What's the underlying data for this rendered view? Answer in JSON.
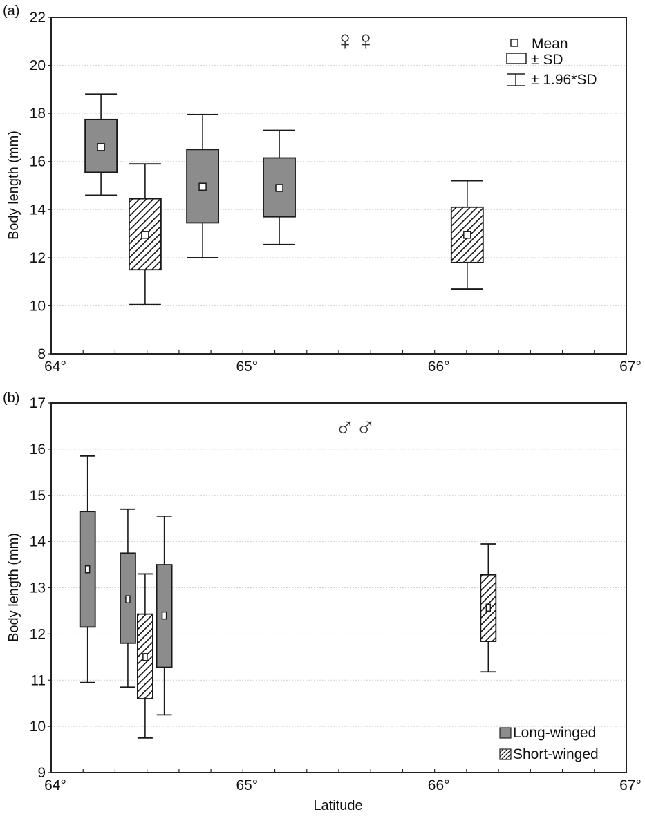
{
  "chart_data": [
    {
      "type": "box",
      "panel_label": "(a)",
      "annotation": "♀♀",
      "title": "",
      "xlabel": "",
      "ylabel": "Body length (mm)",
      "xlim": [
        64,
        67
      ],
      "ylim": [
        8,
        22
      ],
      "x_ticks": [
        64,
        65,
        66,
        67
      ],
      "x_tick_labels": [
        "64°",
        "65°",
        "66°",
        "67°"
      ],
      "y_ticks": [
        8,
        10,
        12,
        14,
        16,
        18,
        20,
        22
      ],
      "y_tick_labels": [
        "8",
        "10",
        "12",
        "14",
        "16",
        "18",
        "20",
        "22"
      ],
      "grid": "horizontal dotted",
      "legend": {
        "position": "top-right",
        "entries": [
          "Mean",
          "± SD",
          "± 1.96*SD"
        ]
      },
      "boxes": [
        {
          "latitude": 64.26,
          "group": "Long-winged",
          "mean": 16.6,
          "sd_low": 15.55,
          "sd_high": 17.75,
          "whisker_low": 14.6,
          "whisker_high": 18.8
        },
        {
          "latitude": 64.49,
          "group": "Short-winged",
          "mean": 12.95,
          "sd_low": 11.5,
          "sd_high": 14.45,
          "whisker_low": 10.05,
          "whisker_high": 15.9
        },
        {
          "latitude": 64.79,
          "group": "Long-winged",
          "mean": 14.95,
          "sd_low": 13.45,
          "sd_high": 16.5,
          "whisker_low": 12.0,
          "whisker_high": 17.95
        },
        {
          "latitude": 65.19,
          "group": "Long-winged",
          "mean": 14.9,
          "sd_low": 13.7,
          "sd_high": 16.15,
          "whisker_low": 12.55,
          "whisker_high": 17.3
        },
        {
          "latitude": 66.17,
          "group": "Short-winged",
          "mean": 12.95,
          "sd_low": 11.8,
          "sd_high": 14.1,
          "whisker_low": 10.7,
          "whisker_high": 15.2
        }
      ]
    },
    {
      "type": "box",
      "panel_label": "(b)",
      "annotation": "♂♂",
      "title": "",
      "xlabel": "Latitude",
      "ylabel": "Body length (mm)",
      "xlim": [
        64,
        67
      ],
      "ylim": [
        9,
        17
      ],
      "x_ticks": [
        64,
        65,
        66,
        67
      ],
      "x_tick_labels": [
        "64°",
        "65°",
        "66°",
        "67°"
      ],
      "y_ticks": [
        9,
        10,
        11,
        12,
        13,
        14,
        15,
        16,
        17
      ],
      "y_tick_labels": [
        "9",
        "10",
        "11",
        "12",
        "13",
        "14",
        "15",
        "16",
        "17"
      ],
      "grid": "horizontal dotted",
      "legend": {
        "position": "bottom-right",
        "entries": [
          "Long-winged",
          "Short-winged"
        ]
      },
      "boxes": [
        {
          "latitude": 64.19,
          "group": "Long-winged",
          "mean": 13.4,
          "sd_low": 12.15,
          "sd_high": 14.65,
          "whisker_low": 10.95,
          "whisker_high": 15.85
        },
        {
          "latitude": 64.4,
          "group": "Long-winged",
          "mean": 12.75,
          "sd_low": 11.8,
          "sd_high": 13.75,
          "whisker_low": 10.85,
          "whisker_high": 14.7
        },
        {
          "latitude": 64.49,
          "group": "Short-winged",
          "mean": 11.5,
          "sd_low": 10.6,
          "sd_high": 12.43,
          "whisker_low": 9.75,
          "whisker_high": 13.3
        },
        {
          "latitude": 64.59,
          "group": "Long-winged",
          "mean": 12.4,
          "sd_low": 11.28,
          "sd_high": 13.5,
          "whisker_low": 10.25,
          "whisker_high": 14.55
        },
        {
          "latitude": 66.28,
          "group": "Short-winged",
          "mean": 12.57,
          "sd_low": 11.84,
          "sd_high": 13.28,
          "whisker_low": 11.18,
          "whisker_high": 13.95
        }
      ]
    }
  ],
  "colors": {
    "long_winged_fill": "#8c8c8c",
    "short_winged_fill": "#ffffff",
    "stroke": "#1a1a1a",
    "grid": "#d0d0d0"
  }
}
